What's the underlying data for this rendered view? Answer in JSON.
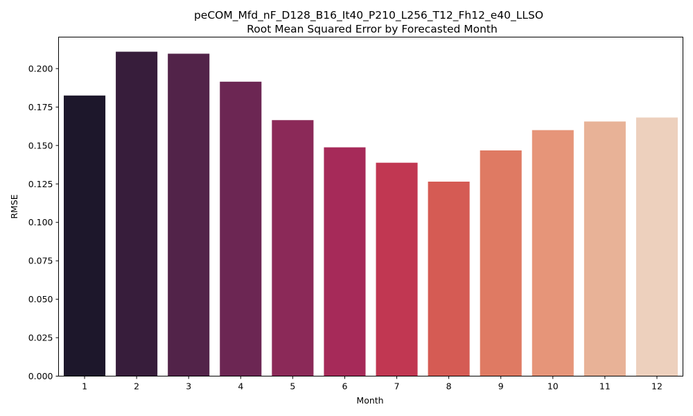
{
  "chart_data": {
    "type": "bar",
    "title": "peCOM_Mfd_nF_D128_B16_It40_P210_L256_T12_Fh12_e40_LLSO",
    "subtitle": "Root Mean Squared Error by Forecasted Month",
    "xlabel": "Month",
    "ylabel": "RMSE",
    "categories": [
      "1",
      "2",
      "3",
      "4",
      "5",
      "6",
      "7",
      "8",
      "9",
      "10",
      "11",
      "12"
    ],
    "values": [
      0.1825,
      0.211,
      0.2097,
      0.1915,
      0.1665,
      0.1488,
      0.1388,
      0.1265,
      0.1468,
      0.16,
      0.1656,
      0.1682
    ],
    "colors": [
      "#1d172b",
      "#371d3b",
      "#522349",
      "#6c2653",
      "#8b2958",
      "#a62a59",
      "#c13752",
      "#d55b54",
      "#df7a63",
      "#e69579",
      "#e8b297",
      "#edd0bd"
    ],
    "ylim": [
      0,
      0.2205
    ],
    "yticks": [
      "0.000",
      "0.025",
      "0.050",
      "0.075",
      "0.100",
      "0.125",
      "0.150",
      "0.175",
      "0.200"
    ],
    "grid": false,
    "legend": "none"
  }
}
